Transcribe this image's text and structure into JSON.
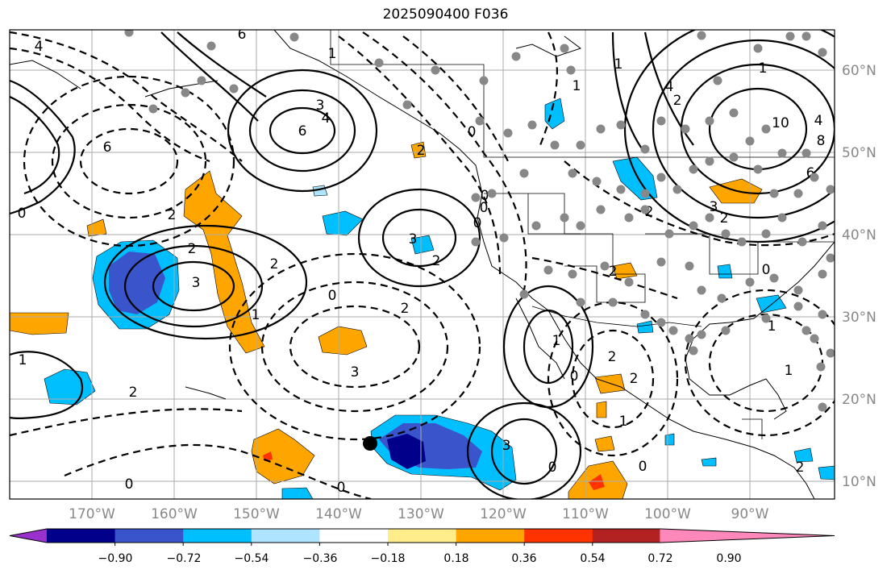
{
  "title": "2025090400 F036",
  "latitudes": [
    "60°N",
    "50°N",
    "40°N",
    "30°N",
    "20°N",
    "10°N"
  ],
  "longitudes": [
    "170°W",
    "160°W",
    "150°W",
    "140°W",
    "130°W",
    "120°W",
    "110°W",
    "100°W",
    "90°W"
  ],
  "colorbar": {
    "colors": [
      "#9932cc",
      "#00008b",
      "#3a55cc",
      "#00bfff",
      "#aee4ff",
      "#ffffff",
      "#ffec8b",
      "#ffa500",
      "#ff3300",
      "#b22222",
      "#ff88bb"
    ],
    "tick_labels": [
      "−0.90",
      "−0.72",
      "−0.54",
      "−0.36",
      "−0.18",
      "0.18",
      "0.36",
      "0.54",
      "0.72",
      "0.90"
    ]
  },
  "contour_labels": [
    "4",
    "6",
    "6",
    "3",
    "4",
    "6",
    "0",
    "2",
    "2",
    "3",
    "2",
    "1",
    "3",
    "0",
    "3",
    "2",
    "0",
    "2",
    "1",
    "0",
    "1",
    "2",
    "2",
    "0",
    "1",
    "2",
    "2",
    "0",
    "0",
    "3",
    "1",
    "0",
    "2",
    "1",
    "1",
    "0",
    "4",
    "2",
    "1",
    "10",
    "4",
    "8",
    "6",
    "3",
    "2",
    "2",
    "2",
    "1",
    "1",
    "0",
    "0",
    "0"
  ],
  "marker": "station-dot"
}
